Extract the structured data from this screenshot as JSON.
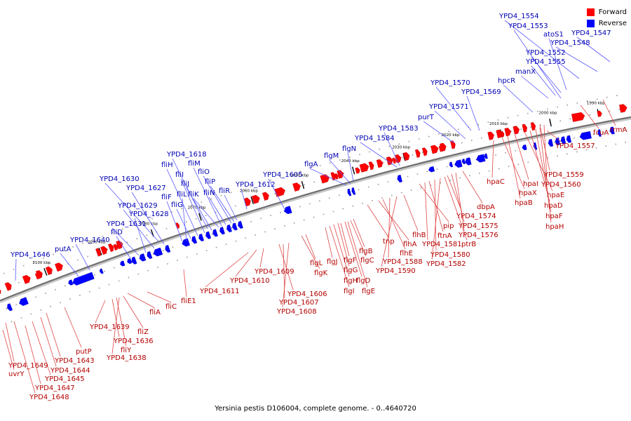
{
  "legend": {
    "forward_label": "Forward",
    "reverse_label": "Reverse",
    "forward_color": "#ff0000",
    "reverse_color": "#0000ff"
  },
  "caption": "Yersinia pestis D106004, complete genome. - 0..4640720",
  "ticks": [
    "2100 kbp",
    "2090 kbp",
    "2080 kbp",
    "2070 kbp",
    "2060 kbp",
    "2050 kbp",
    "2040 kbp",
    "2030 kbp",
    "2020 kbp",
    "2010 kbp",
    "2000 kbp",
    "1990 kbp"
  ],
  "reverse_genes": [
    "YPD4_1646",
    "putA",
    "YPD4_1640",
    "fliD",
    "YPD4_1631",
    "YPD4_1628",
    "YPD4_1629",
    "YPD4_1627",
    "YPD4_1630",
    "fliF",
    "fliG",
    "fliH",
    "fliI",
    "fliJ",
    "fliK",
    "fliL",
    "YPD4_1618",
    "fliM",
    "fliN",
    "fliO",
    "fliP",
    "fliR",
    "YPD4_1612",
    "YPD4_1605",
    "flgA",
    "flgM",
    "flgN",
    "YPD4_1584",
    "YPD4_1583",
    "purT",
    "YPD4_1571",
    "YPD4_1570",
    "YPD4_1569",
    "hpcR",
    "manX",
    "YPD4_1555",
    "YPD4_1552",
    "atoS1",
    "YPD4_1553",
    "YPD4_1554",
    "YPD4_1548",
    "YPD4_1547"
  ],
  "forward_genes": [
    "YPD4_1649",
    "uvrY",
    "YPD4_1643",
    "YPD4_1644",
    "YPD4_1645",
    "YPD4_1647",
    "YPD4_1648",
    "putP",
    "YPD4_1639",
    "YPD4_1636",
    "fliY",
    "YPD4_1638",
    "fliZ",
    "fliA",
    "fliC",
    "fliE1",
    "YPD4_1611",
    "YPD4_1610",
    "YPD4_1609",
    "YPD4_1606",
    "YPD4_1607",
    "YPD4_1608",
    "flgK",
    "flgL",
    "flgJ",
    "flgI",
    "flgH",
    "flgG",
    "flgF",
    "flgD",
    "flgE",
    "flgC",
    "flgB",
    "tnp",
    "flhA",
    "flhE",
    "YPD4_1588",
    "YPD4_1590",
    "flhB",
    "pip",
    "YPD4_1581",
    "ftnA",
    "YPD4_1580",
    "YPD4_1582",
    "ptrB",
    "YPD4_1574",
    "YPD4_1575",
    "YPD4_1576",
    "dbpA",
    "hpaC",
    "hpaX",
    "hpaB",
    "hpaI",
    "hpaE",
    "hpaD",
    "hpaF",
    "hpaH",
    "YPD4_1559",
    "YPD4_1560",
    "YPD4_1557",
    "fcuA",
    "rrmA"
  ]
}
